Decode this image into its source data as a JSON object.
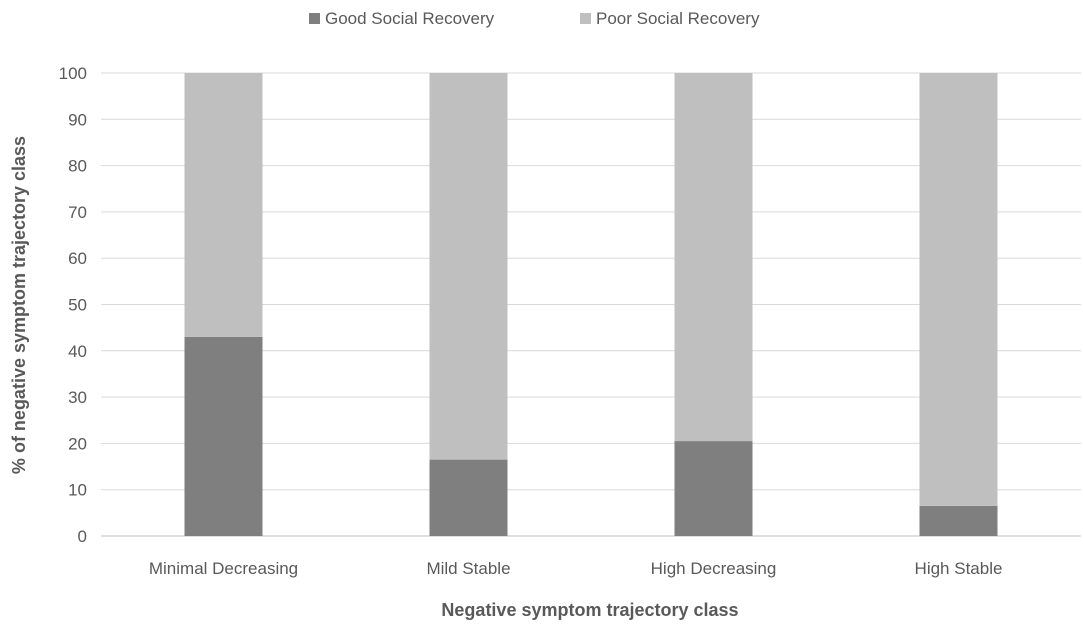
{
  "chart_data": {
    "type": "bar",
    "stacked": true,
    "percent_stacked": true,
    "categories": [
      "Minimal Decreasing",
      "Mild Stable",
      "High Decreasing",
      "High Stable"
    ],
    "series": [
      {
        "name": "Good Social Recovery",
        "color": "#7f7f7f",
        "values": [
          43,
          16.5,
          20.5,
          6.5
        ]
      },
      {
        "name": "Poor Social Recovery",
        "color": "#bfbfbf",
        "values": [
          57,
          83.5,
          79.5,
          93.5
        ]
      }
    ],
    "xlabel": "Negative symptom trajectory class",
    "ylabel": "% of negative symptom trajectory class",
    "ylim": [
      0,
      100
    ],
    "yticks": [
      "0",
      "10",
      "20",
      "30",
      "40",
      "50",
      "60",
      "70",
      "80",
      "90",
      "100"
    ],
    "grid": true,
    "legend_position": "top"
  }
}
